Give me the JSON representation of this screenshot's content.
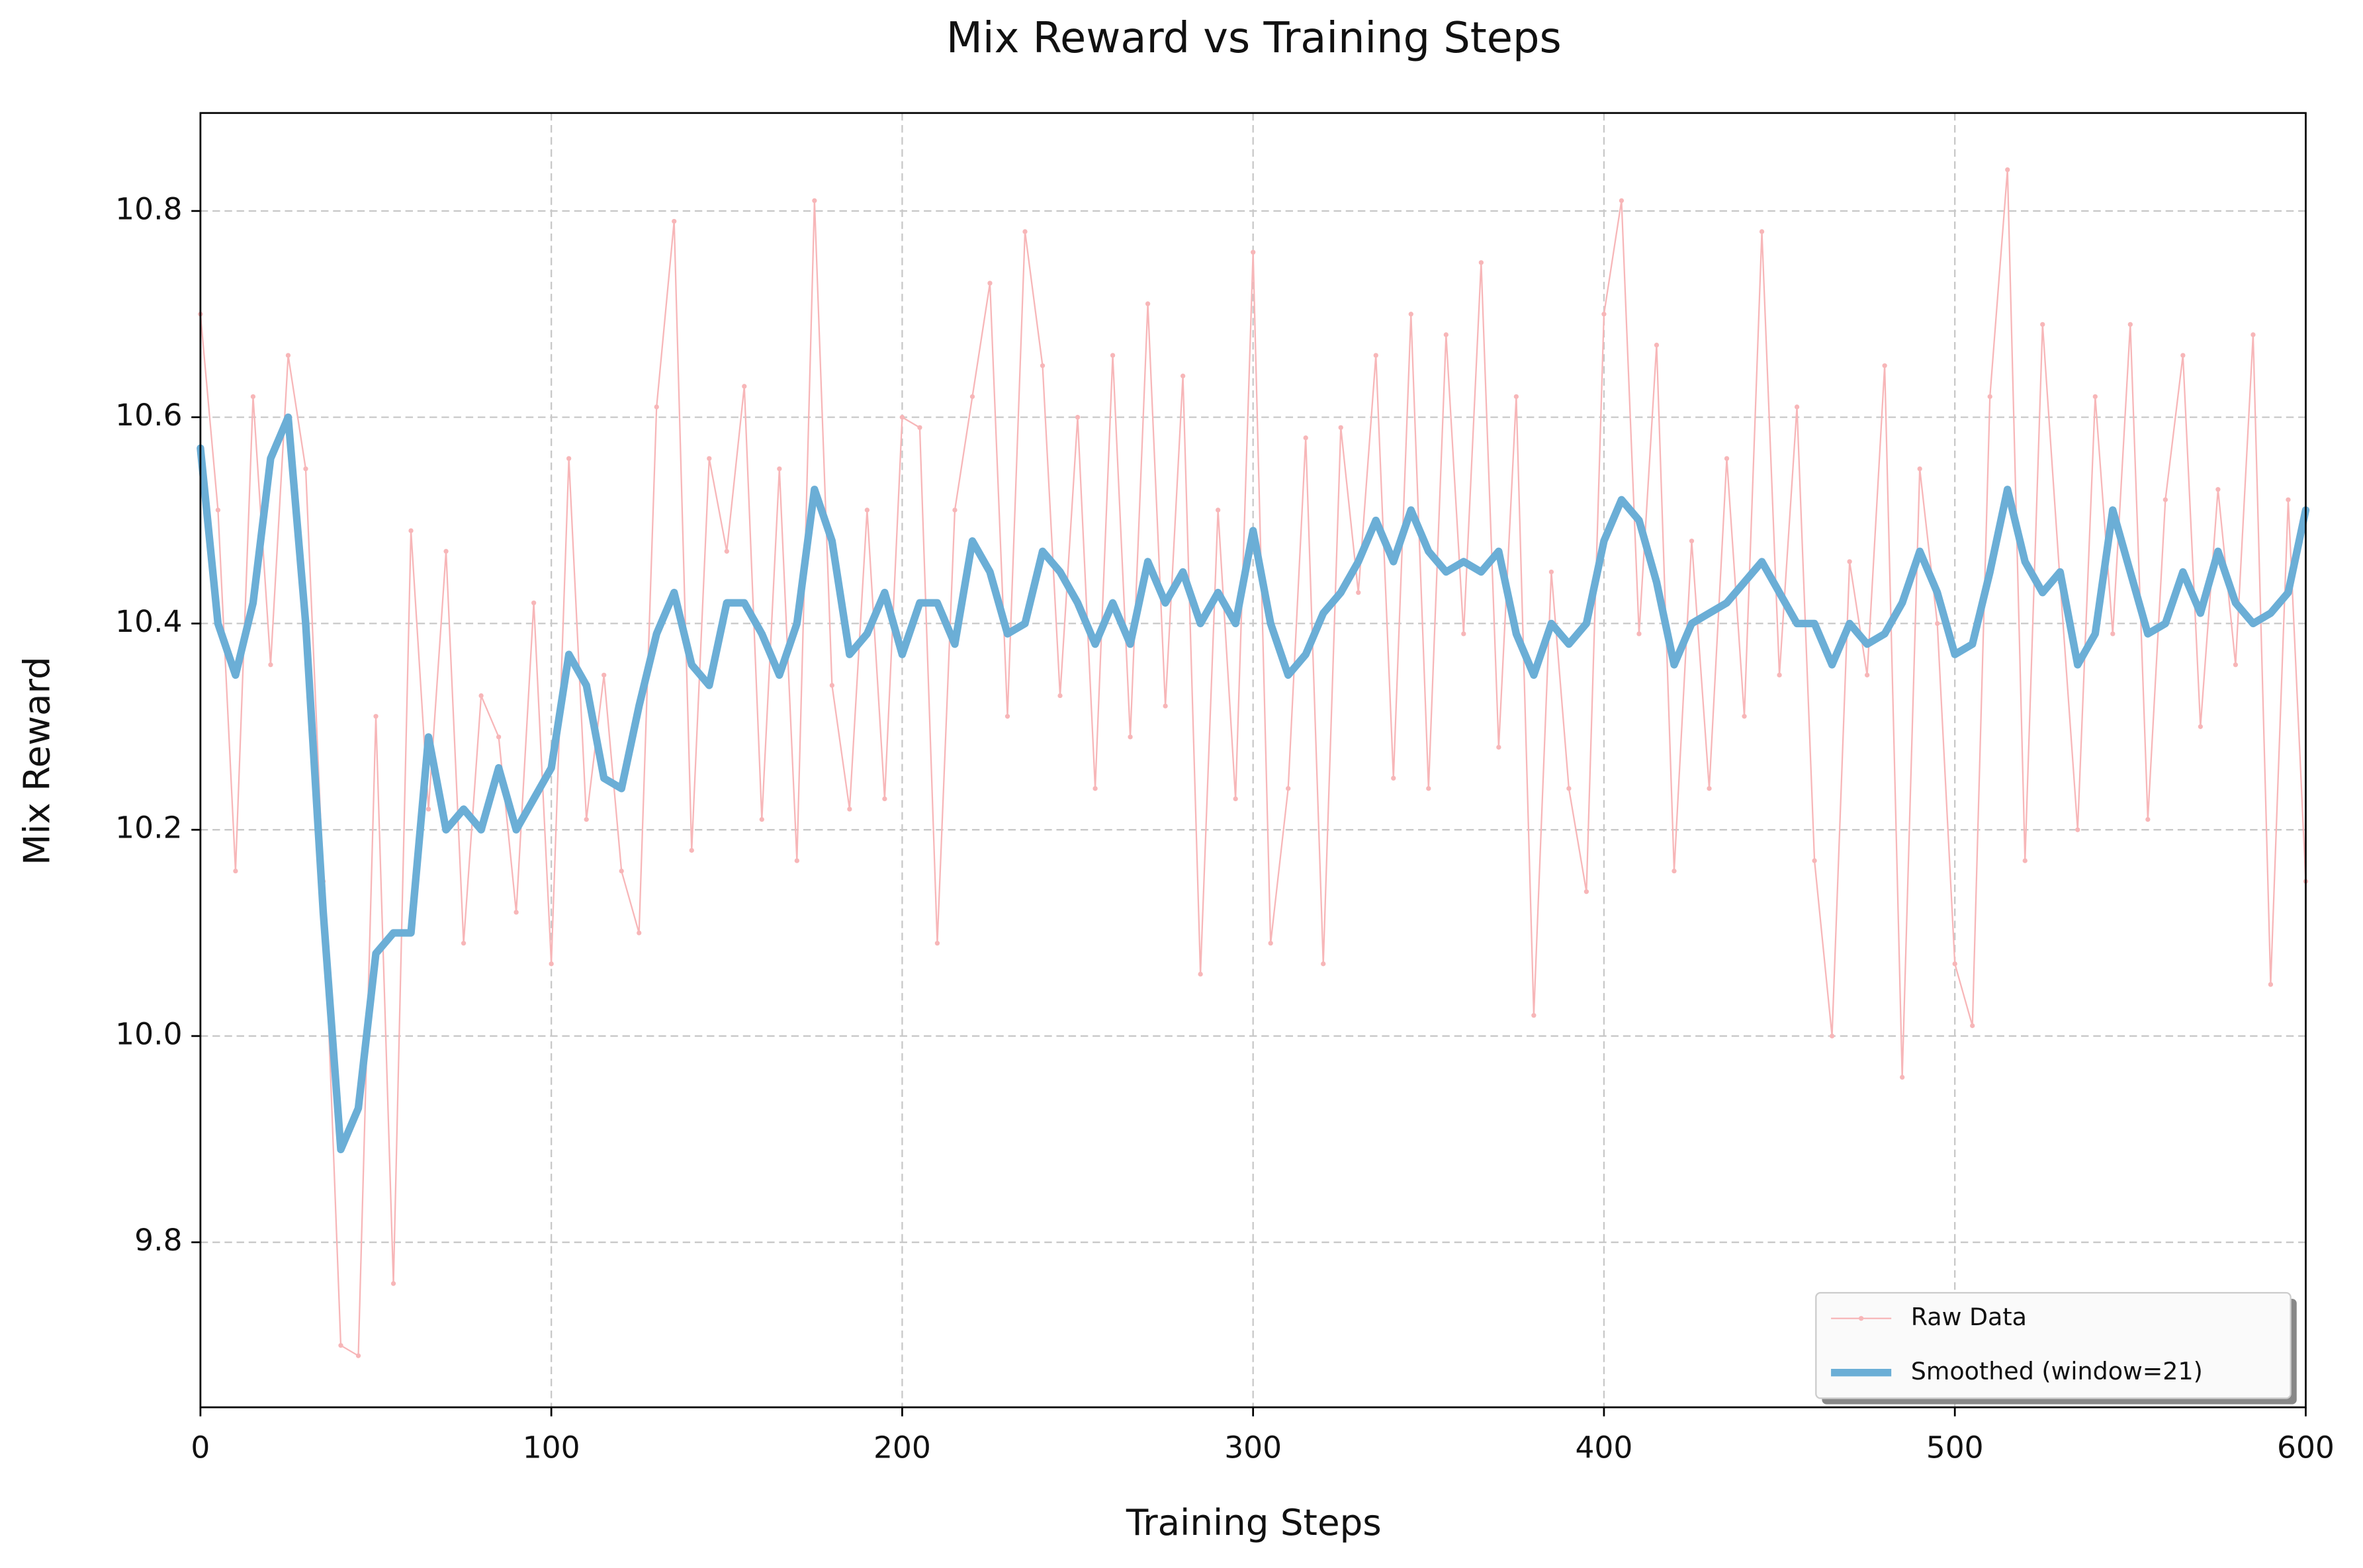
{
  "chart_data": {
    "type": "line",
    "title": "Mix Reward vs Training Steps",
    "xlabel": "Training Steps",
    "ylabel": "Mix Reward",
    "x": [
      0,
      5,
      10,
      15,
      20,
      25,
      30,
      35,
      40,
      45,
      50,
      55,
      60,
      65,
      70,
      75,
      80,
      85,
      90,
      95,
      100,
      105,
      110,
      115,
      120,
      125,
      130,
      135,
      140,
      145,
      150,
      155,
      160,
      165,
      170,
      175,
      180,
      185,
      190,
      195,
      200,
      205,
      210,
      215,
      220,
      225,
      230,
      235,
      240,
      245,
      250,
      255,
      260,
      265,
      270,
      275,
      280,
      285,
      290,
      295,
      300,
      305,
      310,
      315,
      320,
      325,
      330,
      335,
      340,
      345,
      350,
      355,
      360,
      365,
      370,
      375,
      380,
      385,
      390,
      395,
      400,
      405,
      410,
      415,
      420,
      425,
      430,
      435,
      440,
      445,
      450,
      455,
      460,
      465,
      470,
      475,
      480,
      485,
      490,
      495,
      500,
      505,
      510,
      515,
      520,
      525,
      530,
      535,
      540,
      545,
      550,
      555,
      560,
      565,
      570,
      575,
      580,
      585,
      590,
      595,
      600
    ],
    "series": [
      {
        "name": "Raw Data",
        "color": "#f7b6b8",
        "marker": true,
        "values": [
          10.7,
          10.51,
          10.16,
          10.62,
          10.36,
          10.66,
          10.55,
          10.15,
          9.7,
          9.69,
          10.31,
          9.76,
          10.49,
          10.22,
          10.47,
          10.09,
          10.33,
          10.29,
          10.12,
          10.42,
          10.07,
          10.56,
          10.21,
          10.35,
          10.16,
          10.1,
          10.61,
          10.79,
          10.18,
          10.56,
          10.47,
          10.63,
          10.21,
          10.55,
          10.17,
          10.81,
          10.34,
          10.22,
          10.51,
          10.23,
          10.6,
          10.59,
          10.09,
          10.51,
          10.62,
          10.73,
          10.31,
          10.78,
          10.65,
          10.33,
          10.6,
          10.24,
          10.66,
          10.29,
          10.71,
          10.32,
          10.64,
          10.06,
          10.51,
          10.23,
          10.76,
          10.09,
          10.24,
          10.58,
          10.07,
          10.59,
          10.43,
          10.66,
          10.25,
          10.7,
          10.24,
          10.68,
          10.39,
          10.75,
          10.28,
          10.62,
          10.02,
          10.45,
          10.24,
          10.14,
          10.7,
          10.81,
          10.39,
          10.67,
          10.16,
          10.48,
          10.24,
          10.56,
          10.31,
          10.78,
          10.35,
          10.61,
          10.17,
          10.0,
          10.46,
          10.35,
          10.65,
          9.96,
          10.55,
          10.4,
          10.07,
          10.01,
          10.62,
          10.84,
          10.17,
          10.69,
          10.44,
          10.2,
          10.62,
          10.39,
          10.69,
          10.21,
          10.52,
          10.66,
          10.3,
          10.53,
          10.36,
          10.68,
          10.05,
          10.52,
          10.15
        ]
      },
      {
        "name": "Smoothed (window=21)",
        "color": "#6baed6",
        "marker": false,
        "values": [
          10.57,
          10.4,
          10.35,
          10.42,
          10.56,
          10.6,
          10.4,
          10.12,
          9.89,
          9.93,
          10.08,
          10.1,
          10.1,
          10.29,
          10.2,
          10.22,
          10.2,
          10.26,
          10.2,
          10.23,
          10.26,
          10.37,
          10.34,
          10.25,
          10.24,
          10.32,
          10.39,
          10.43,
          10.36,
          10.34,
          10.42,
          10.42,
          10.39,
          10.35,
          10.4,
          10.53,
          10.48,
          10.37,
          10.39,
          10.43,
          10.37,
          10.42,
          10.42,
          10.38,
          10.48,
          10.45,
          10.39,
          10.4,
          10.47,
          10.45,
          10.42,
          10.38,
          10.42,
          10.38,
          10.46,
          10.42,
          10.45,
          10.4,
          10.43,
          10.4,
          10.49,
          10.4,
          10.35,
          10.37,
          10.41,
          10.43,
          10.46,
          10.5,
          10.46,
          10.51,
          10.47,
          10.45,
          10.46,
          10.45,
          10.47,
          10.39,
          10.35,
          10.4,
          10.38,
          10.4,
          10.48,
          10.52,
          10.5,
          10.44,
          10.36,
          10.4,
          10.41,
          10.42,
          10.44,
          10.46,
          10.43,
          10.4,
          10.4,
          10.36,
          10.4,
          10.38,
          10.39,
          10.42,
          10.47,
          10.43,
          10.37,
          10.38,
          10.45,
          10.53,
          10.46,
          10.43,
          10.45,
          10.36,
          10.39,
          10.51,
          10.45,
          10.39,
          10.4,
          10.45,
          10.41,
          10.47,
          10.42,
          10.4,
          10.41,
          10.43,
          10.51
        ]
      }
    ],
    "xlim": [
      0,
      600
    ],
    "xticks": [
      0,
      100,
      200,
      300,
      400,
      500,
      600
    ],
    "ylim": [
      9.64,
      10.895
    ],
    "yticks": [
      9.8,
      {
        "value": 10,
        "label": "10.0"
      },
      10.2,
      10.4,
      10.6,
      10.8
    ],
    "grid": true,
    "legend": "lower right"
  }
}
